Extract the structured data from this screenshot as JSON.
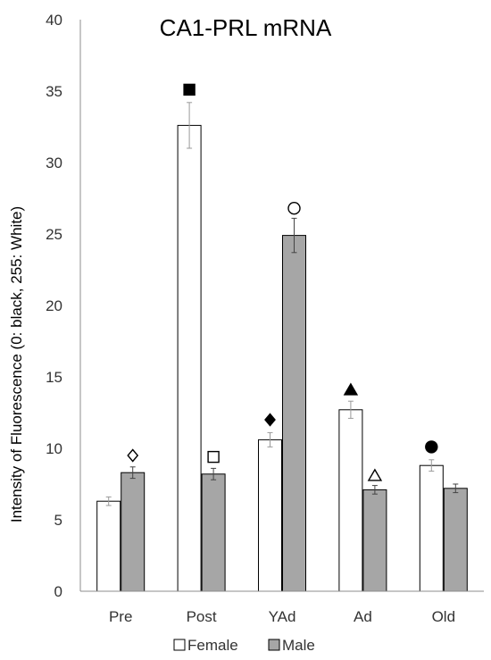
{
  "chart_data": {
    "type": "bar",
    "title": "CA1-PRL mRNA",
    "ylabel": "Intensity of Fluorescence (0: black, 255: White)",
    "xlabel": "",
    "ylim": [
      0,
      40
    ],
    "yticks": [
      0,
      5,
      10,
      15,
      20,
      25,
      30,
      35,
      40
    ],
    "categories": [
      "Pre",
      "Post",
      "YAd",
      "Ad",
      "Old"
    ],
    "series": [
      {
        "name": "Female",
        "color": "#ffffff",
        "values": [
          6.3,
          32.6,
          10.6,
          12.7,
          8.8
        ],
        "errors": [
          0.3,
          1.6,
          0.5,
          0.6,
          0.4
        ]
      },
      {
        "name": "Male",
        "color": "#a6a6a6",
        "values": [
          8.3,
          8.2,
          24.9,
          7.1,
          7.2
        ],
        "errors": [
          0.4,
          0.4,
          1.2,
          0.3,
          0.3
        ]
      }
    ],
    "markers": [
      {
        "category": "Pre",
        "series": "Male",
        "symbol": "diamond-open",
        "y": 9.5
      },
      {
        "category": "Post",
        "series": "Female",
        "symbol": "square-filled",
        "y": 35.1
      },
      {
        "category": "Post",
        "series": "Male",
        "symbol": "square-open",
        "y": 9.4
      },
      {
        "category": "YAd",
        "series": "Female",
        "symbol": "diamond-filled",
        "y": 12.0
      },
      {
        "category": "YAd",
        "series": "Male",
        "symbol": "circle-open",
        "y": 26.8
      },
      {
        "category": "Ad",
        "series": "Female",
        "symbol": "triangle-filled",
        "y": 14.1
      },
      {
        "category": "Ad",
        "series": "Male",
        "symbol": "triangle-open",
        "y": 8.1
      },
      {
        "category": "Old",
        "series": "Female",
        "symbol": "circle-filled",
        "y": 10.1
      }
    ],
    "legend_placement": "bottom-center",
    "grid": false
  }
}
